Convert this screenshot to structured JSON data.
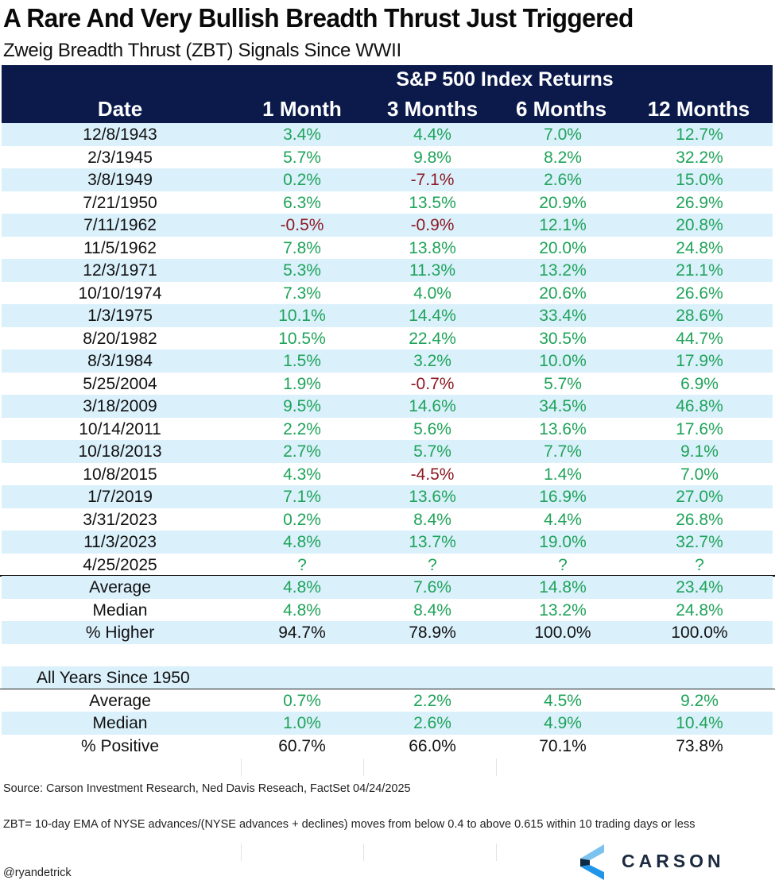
{
  "chart_data": {
    "type": "table",
    "title": "A Rare And Very Bullish Breadth Thrust Just Triggered",
    "subtitle": "Zweig Breadth Thrust (ZBT) Signals Since WWII",
    "group_header": "S&P 500 Index Returns",
    "columns": [
      "Date",
      "1 Month",
      "3 Months",
      "6 Months",
      "12 Months"
    ],
    "rows": [
      {
        "date": "12/8/1943",
        "values": [
          "3.4%",
          "4.4%",
          "7.0%",
          "12.7%"
        ]
      },
      {
        "date": "2/3/1945",
        "values": [
          "5.7%",
          "9.8%",
          "8.2%",
          "32.2%"
        ]
      },
      {
        "date": "3/8/1949",
        "values": [
          "0.2%",
          "-7.1%",
          "2.6%",
          "15.0%"
        ]
      },
      {
        "date": "7/21/1950",
        "values": [
          "6.3%",
          "13.5%",
          "20.9%",
          "26.9%"
        ]
      },
      {
        "date": "7/11/1962",
        "values": [
          "-0.5%",
          "-0.9%",
          "12.1%",
          "20.8%"
        ]
      },
      {
        "date": "11/5/1962",
        "values": [
          "7.8%",
          "13.8%",
          "20.0%",
          "24.8%"
        ]
      },
      {
        "date": "12/3/1971",
        "values": [
          "5.3%",
          "11.3%",
          "13.2%",
          "21.1%"
        ]
      },
      {
        "date": "10/10/1974",
        "values": [
          "7.3%",
          "4.0%",
          "20.6%",
          "26.6%"
        ]
      },
      {
        "date": "1/3/1975",
        "values": [
          "10.1%",
          "14.4%",
          "33.4%",
          "28.6%"
        ]
      },
      {
        "date": "8/20/1982",
        "values": [
          "10.5%",
          "22.4%",
          "30.5%",
          "44.7%"
        ]
      },
      {
        "date": "8/3/1984",
        "values": [
          "1.5%",
          "3.2%",
          "10.0%",
          "17.9%"
        ]
      },
      {
        "date": "5/25/2004",
        "values": [
          "1.9%",
          "-0.7%",
          "5.7%",
          "6.9%"
        ]
      },
      {
        "date": "3/18/2009",
        "values": [
          "9.5%",
          "14.6%",
          "34.5%",
          "46.8%"
        ]
      },
      {
        "date": "10/14/2011",
        "values": [
          "2.2%",
          "5.6%",
          "13.6%",
          "17.6%"
        ]
      },
      {
        "date": "10/18/2013",
        "values": [
          "2.7%",
          "5.7%",
          "7.7%",
          "9.1%"
        ]
      },
      {
        "date": "10/8/2015",
        "values": [
          "4.3%",
          "-4.5%",
          "1.4%",
          "7.0%"
        ]
      },
      {
        "date": "1/7/2019",
        "values": [
          "7.1%",
          "13.6%",
          "16.9%",
          "27.0%"
        ]
      },
      {
        "date": "3/31/2023",
        "values": [
          "0.2%",
          "8.4%",
          "4.4%",
          "26.8%"
        ]
      },
      {
        "date": "11/3/2023",
        "values": [
          "4.8%",
          "13.7%",
          "19.0%",
          "32.7%"
        ]
      },
      {
        "date": "4/25/2025",
        "values": [
          "?",
          "?",
          "?",
          "?"
        ]
      }
    ],
    "summary": [
      {
        "label": "Average",
        "values": [
          "4.8%",
          "7.6%",
          "14.8%",
          "23.4%"
        ],
        "tone": "pos"
      },
      {
        "label": "Median",
        "values": [
          "4.8%",
          "8.4%",
          "13.2%",
          "24.8%"
        ],
        "tone": "pos"
      },
      {
        "label": "% Higher",
        "values": [
          "94.7%",
          "78.9%",
          "100.0%",
          "100.0%"
        ],
        "tone": "blk"
      }
    ],
    "baseline_title": "All Years Since 1950",
    "baseline": [
      {
        "label": "Average",
        "values": [
          "0.7%",
          "2.2%",
          "4.5%",
          "9.2%"
        ],
        "tone": "pos"
      },
      {
        "label": "Median",
        "values": [
          "1.0%",
          "2.6%",
          "4.9%",
          "10.4%"
        ],
        "tone": "pos"
      },
      {
        "label": "% Positive",
        "values": [
          "60.7%",
          "66.0%",
          "70.1%",
          "73.8%"
        ],
        "tone": "blk"
      }
    ]
  },
  "colors": {
    "header_bg": "#0b1a4b",
    "stripe": "#daf0fb",
    "positive": "#1fa35a",
    "negative": "#8b1a24"
  },
  "footer": {
    "source": "Source: Carson Investment Research, Ned Davis Reseach, FactSet 04/24/2025",
    "note": "ZBT= 10-day EMA of NYSE advances/(NYSE advances + declines) moves from below 0.4 to above 0.615 within 10 trading days or less",
    "handle": "@ryandetrick",
    "logo_text": "CARSON"
  }
}
